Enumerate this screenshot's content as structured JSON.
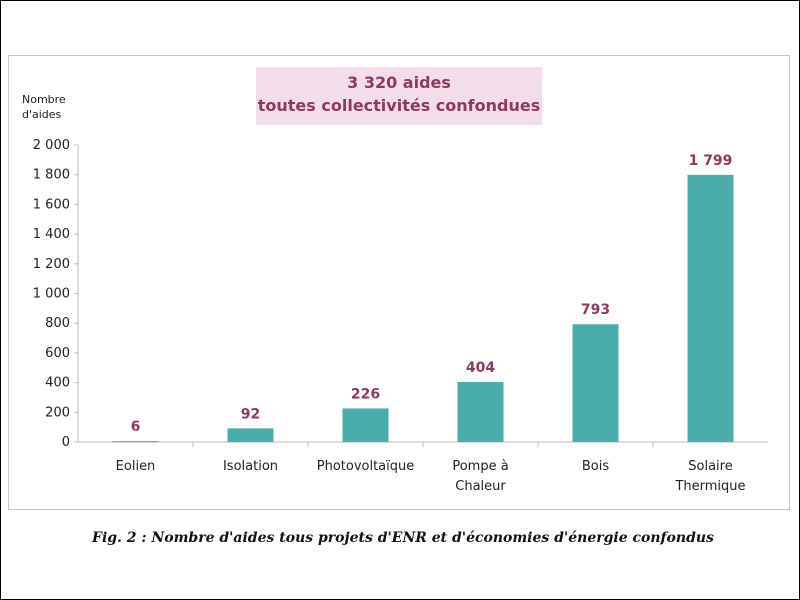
{
  "chart_data": {
    "type": "bar",
    "title": "3 320 aides\ntoutes collectivités confondues",
    "ylabel": "Nombre\nd'aides",
    "xlabel": "",
    "categories": [
      "Eolien",
      "Isolation",
      "Photovoltaïque",
      "Pompe à\nChaleur",
      "Bois",
      "Solaire\nThermique"
    ],
    "values": [
      6,
      92,
      226,
      404,
      793,
      1799
    ],
    "value_labels": [
      "6",
      "92",
      "226",
      "404",
      "793",
      "1 799"
    ],
    "ylim": [
      0,
      2000
    ],
    "yticks": [
      0,
      200,
      400,
      600,
      800,
      1000,
      1200,
      1400,
      1600,
      1800,
      2000
    ],
    "ytick_labels": [
      "0",
      "200",
      "400",
      "600",
      "800",
      "1 000",
      "1 200",
      "1 400",
      "1 600",
      "1 800",
      "2 000"
    ],
    "bar_color": "#4bacac",
    "label_color": "#8b3a63",
    "grid": false
  },
  "banner": {
    "line1": "3 320 aides",
    "line2": "toutes collectivités confondues"
  },
  "ylabel": {
    "line1": "Nombre",
    "line2": "d'aides"
  },
  "caption": "Fig. 2 : Nombre d'aides tous projets d'ENR et d'économies d'énergie confondus"
}
